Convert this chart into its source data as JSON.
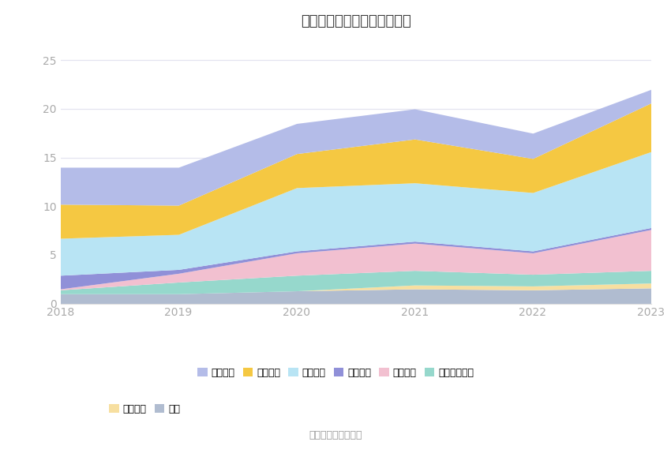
{
  "title": "历年主要负债堆积图（亿元）",
  "years": [
    2018,
    2019,
    2020,
    2021,
    2022,
    2023
  ],
  "series": [
    {
      "name": "其它",
      "color": "#b0bcd0",
      "values": [
        1.0,
        1.0,
        1.3,
        1.5,
        1.4,
        1.6
      ]
    },
    {
      "name": "长期借款",
      "color": "#f7dfa0",
      "values": [
        0.0,
        0.0,
        0.0,
        0.4,
        0.4,
        0.5
      ]
    },
    {
      "name": "其他流动负债",
      "color": "#96d8cc",
      "values": [
        0.4,
        1.2,
        1.6,
        1.5,
        1.2,
        1.3
      ]
    },
    {
      "name": "合同负债",
      "color": "#f2c0d0",
      "values": [
        0.1,
        0.9,
        2.3,
        2.8,
        2.2,
        4.2
      ]
    },
    {
      "name": "预收款项",
      "color": "#9090d8",
      "values": [
        1.4,
        0.4,
        0.2,
        0.2,
        0.2,
        0.2
      ]
    },
    {
      "name": "应付账款",
      "color": "#b8e4f4",
      "values": [
        3.8,
        3.6,
        6.5,
        6.0,
        6.0,
        7.8
      ]
    },
    {
      "name": "应付票据",
      "color": "#f5c842",
      "values": [
        3.5,
        3.0,
        3.5,
        4.5,
        3.5,
        5.0
      ]
    },
    {
      "name": "短期借款",
      "color": "#b4bce8",
      "values": [
        3.8,
        3.9,
        3.1,
        3.1,
        2.6,
        1.4
      ]
    }
  ],
  "ylim": [
    0,
    27
  ],
  "yticks": [
    0,
    5,
    10,
    15,
    20,
    25
  ],
  "source_text": "数据来源：恒生聚源",
  "bg_color": "#ffffff",
  "grid_color": "#e4e4f0",
  "legend_row1": [
    "短期借款",
    "应付票据",
    "应付账款",
    "预收款项",
    "合同负债",
    "其他流动负债"
  ],
  "legend_row2": [
    "长期借款",
    "其它"
  ]
}
